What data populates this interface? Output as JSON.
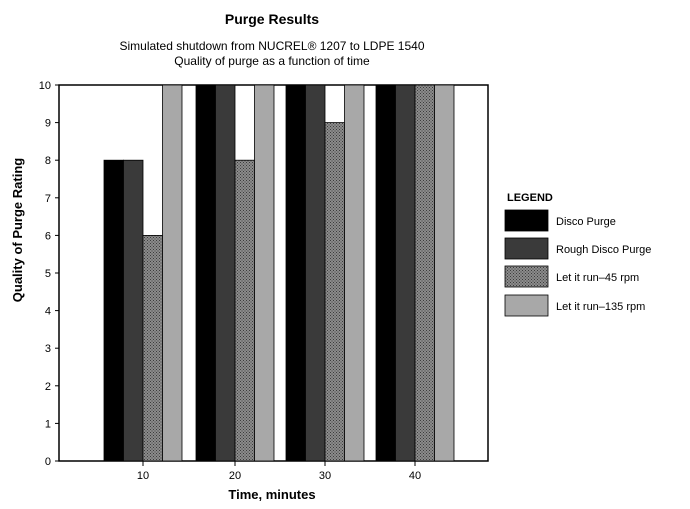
{
  "chart_data": {
    "type": "bar",
    "title": "Purge Results",
    "subtitle": [
      "Simulated shutdown from NUCREL® 1207 to LDPE 1540",
      "Quality of purge as a function of time"
    ],
    "xlabel": "Time, minutes",
    "ylabel": "Quality of Purge Rating",
    "categories": [
      "10",
      "20",
      "30",
      "40"
    ],
    "ylim": [
      0,
      10
    ],
    "yticks": [
      "0",
      "1",
      "2",
      "3",
      "4",
      "5",
      "6",
      "7",
      "8",
      "9",
      "10"
    ],
    "grid": false,
    "legend": {
      "title": "LEGEND",
      "position": "right"
    },
    "series": [
      {
        "name": "Disco Purge",
        "values": [
          8,
          10,
          10,
          10
        ],
        "color": "#000000",
        "pattern": "solid"
      },
      {
        "name": "Rough Disco Purge",
        "values": [
          8,
          10,
          10,
          10
        ],
        "color": "#3a3a3a",
        "pattern": "solid"
      },
      {
        "name": "Let it run–45 rpm",
        "values": [
          6,
          8,
          9,
          10
        ],
        "color": "#7a7a7a",
        "pattern": "crosshatch"
      },
      {
        "name": "Let it run–135 rpm",
        "values": [
          10,
          10,
          10,
          10
        ],
        "color": "#a8a8a8",
        "pattern": "solid"
      }
    ]
  }
}
